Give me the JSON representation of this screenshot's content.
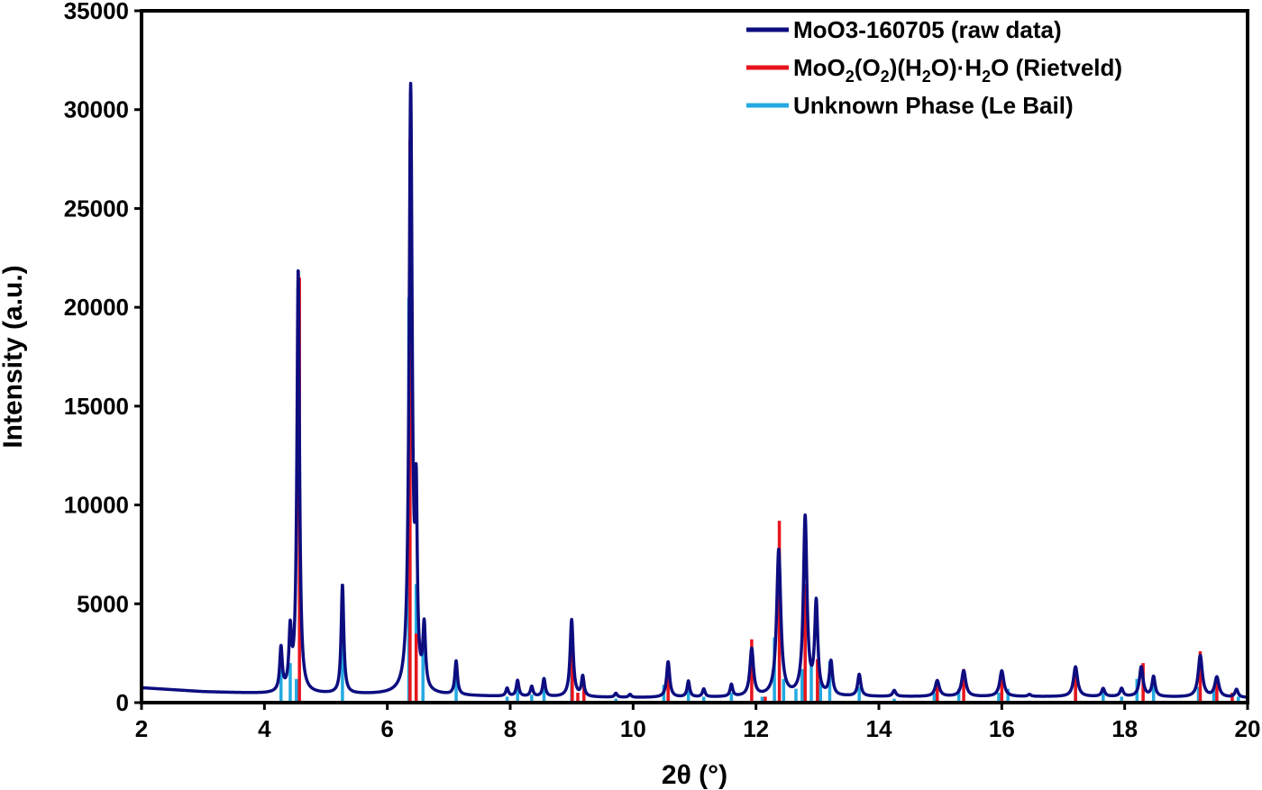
{
  "chart_data": {
    "type": "line",
    "title": "",
    "xlabel": "2θ (°)",
    "ylabel": "Intensity (a.u.)",
    "xlim": [
      2,
      20
    ],
    "ylim": [
      0,
      35000
    ],
    "x_ticks": [
      "2",
      "4",
      "6",
      "8",
      "10",
      "12",
      "14",
      "16",
      "18",
      "20"
    ],
    "y_ticks": [
      "0",
      "5000",
      "10000",
      "15000",
      "20000",
      "25000",
      "30000",
      "35000"
    ],
    "grid": false,
    "legend_position": "top-right",
    "series": [
      {
        "name": "MoO3-160705 (raw data)",
        "kind": "line",
        "color": "#0d0d80",
        "baseline": [
          [
            2.0,
            750
          ],
          [
            3.0,
            550
          ],
          [
            4.0,
            450
          ],
          [
            6.0,
            400
          ],
          [
            8.0,
            300
          ],
          [
            10.0,
            250
          ],
          [
            12.0,
            280
          ],
          [
            14.0,
            300
          ],
          [
            16.0,
            300
          ],
          [
            18.0,
            300
          ],
          [
            20.0,
            250
          ]
        ],
        "peaks": [
          [
            4.27,
            2200,
            0.025
          ],
          [
            4.42,
            2900,
            0.025
          ],
          [
            4.55,
            21400,
            0.025
          ],
          [
            5.27,
            5500,
            0.025
          ],
          [
            6.38,
            30500,
            0.03
          ],
          [
            6.47,
            8500,
            0.02
          ],
          [
            6.6,
            3100,
            0.025
          ],
          [
            7.12,
            1700,
            0.025
          ],
          [
            7.95,
            400,
            0.025
          ],
          [
            8.12,
            800,
            0.025
          ],
          [
            8.35,
            500,
            0.025
          ],
          [
            8.55,
            900,
            0.025
          ],
          [
            9.0,
            3900,
            0.03
          ],
          [
            9.18,
            1000,
            0.025
          ],
          [
            9.72,
            200,
            0.025
          ],
          [
            9.95,
            150,
            0.025
          ],
          [
            10.57,
            1800,
            0.03
          ],
          [
            10.9,
            800,
            0.025
          ],
          [
            11.15,
            400,
            0.025
          ],
          [
            11.6,
            600,
            0.025
          ],
          [
            11.93,
            2400,
            0.035
          ],
          [
            12.37,
            7400,
            0.04
          ],
          [
            12.8,
            9000,
            0.035
          ],
          [
            12.98,
            4600,
            0.03
          ],
          [
            13.22,
            1700,
            0.03
          ],
          [
            13.68,
            1100,
            0.03
          ],
          [
            14.25,
            300,
            0.03
          ],
          [
            14.95,
            800,
            0.04
          ],
          [
            15.38,
            1300,
            0.04
          ],
          [
            16.0,
            1300,
            0.04
          ],
          [
            16.45,
            100,
            0.03
          ],
          [
            17.2,
            1500,
            0.04
          ],
          [
            17.65,
            400,
            0.03
          ],
          [
            17.95,
            400,
            0.03
          ],
          [
            18.27,
            1500,
            0.035
          ],
          [
            18.47,
            1000,
            0.03
          ],
          [
            19.23,
            2100,
            0.04
          ],
          [
            19.5,
            1000,
            0.04
          ],
          [
            19.82,
            400,
            0.03
          ]
        ]
      },
      {
        "name": "MoO2(O2)(H2O)·H2O (Rietveld)",
        "kind": "sticks",
        "color": "#e8141c",
        "x": [
          4.57,
          6.37,
          6.47,
          9.01,
          9.1,
          9.2,
          10.57,
          11.93,
          12.15,
          12.38,
          12.8,
          13.0,
          14.95,
          15.38,
          16.0,
          17.2,
          18.3,
          19.23,
          19.5,
          19.75
        ],
        "y": [
          21500,
          28500,
          3500,
          3500,
          500,
          1100,
          1900,
          3200,
          300,
          9200,
          6000,
          2200,
          1100,
          1700,
          1200,
          1700,
          2000,
          2600,
          1100,
          500
        ]
      },
      {
        "name": "Unknown Phase (Le Bail)",
        "kind": "sticks",
        "color": "#23a9e1",
        "x": [
          4.27,
          4.42,
          4.52,
          5.27,
          6.35,
          6.47,
          6.58,
          7.12,
          7.95,
          8.12,
          8.35,
          8.55,
          9.0,
          9.72,
          10.5,
          10.9,
          11.15,
          11.6,
          12.1,
          12.3,
          12.45,
          12.65,
          12.75,
          12.9,
          13.05,
          13.2,
          13.68,
          14.25,
          14.9,
          15.3,
          15.95,
          16.1,
          16.45,
          17.2,
          17.65,
          17.95,
          18.2,
          18.47,
          19.2,
          19.45,
          19.85
        ],
        "y": [
          1700,
          2000,
          1200,
          5000,
          20500,
          6000,
          2700,
          1600,
          300,
          700,
          400,
          800,
          1600,
          200,
          900,
          700,
          300,
          500,
          300,
          3300,
          1200,
          700,
          1700,
          2000,
          1100,
          2100,
          800,
          200,
          500,
          700,
          500,
          700,
          100,
          1000,
          600,
          300,
          1200,
          1200,
          800,
          700,
          300
        ]
      }
    ]
  },
  "legend": {
    "items": [
      {
        "label": "MoO3-160705 (raw data)",
        "color": "#0d0d80"
      },
      {
        "label_parts": [
          "MoO",
          "2",
          "(O",
          "2",
          ")(H",
          "2",
          "O)·H",
          "2",
          "O (Rietveld)"
        ],
        "color": "#e8141c"
      },
      {
        "label": "Unknown Phase (Le Bail)",
        "color": "#23a9e1"
      }
    ]
  }
}
